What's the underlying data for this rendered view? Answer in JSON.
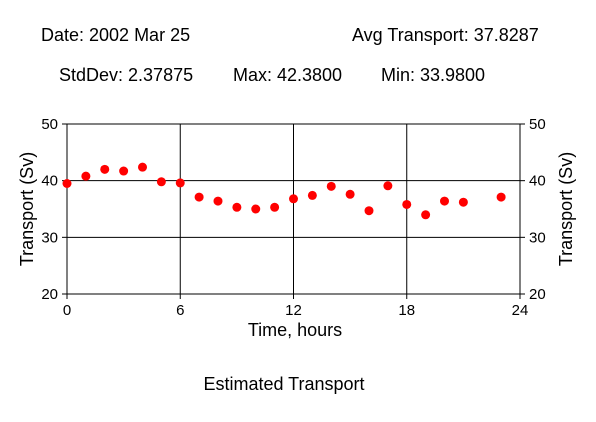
{
  "header": {
    "date": "Date: 2002 Mar 25",
    "avg": "Avg Transport: 37.8287",
    "stddev": "StdDev: 2.37875",
    "max": "Max: 42.3800",
    "min": "Min: 33.9800"
  },
  "caption": "Estimated Transport",
  "chart_data": {
    "type": "scatter",
    "xlabel": "Time, hours",
    "ylabel": "Transport (Sv)",
    "ylabel_right": "Transport (Sv)",
    "xlim": [
      0,
      24
    ],
    "ylim": [
      20,
      50
    ],
    "xticks": [
      0,
      6,
      12,
      18,
      24
    ],
    "yticks": [
      20,
      30,
      40,
      50
    ],
    "grid": true,
    "marker_color": "#ff0000",
    "x": [
      0,
      1,
      2,
      3,
      4,
      5,
      6,
      7,
      8,
      9,
      10,
      11,
      12,
      13,
      14,
      15,
      16,
      17,
      18,
      19,
      20,
      21,
      23
    ],
    "y": [
      39.5,
      40.8,
      42.0,
      41.7,
      42.38,
      39.8,
      39.6,
      37.1,
      36.4,
      35.3,
      35.0,
      35.3,
      36.8,
      37.4,
      39.0,
      37.6,
      34.7,
      39.1,
      35.8,
      33.98,
      36.4,
      36.2,
      37.1
    ]
  }
}
